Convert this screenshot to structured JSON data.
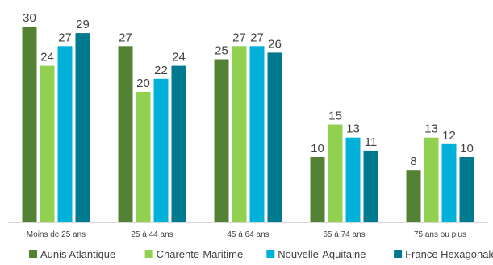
{
  "chart_data": {
    "type": "bar",
    "categories": [
      "Moins de 25 ans",
      "25 à 44 ans",
      "45 à 64 ans",
      "65 à 74 ans",
      "75 ans ou plus"
    ],
    "series": [
      {
        "name": "Aunis Atlantique",
        "color": "#548235",
        "values": [
          30,
          27,
          25,
          10,
          8
        ]
      },
      {
        "name": "Charente-Maritime",
        "color": "#92d050",
        "values": [
          24,
          20,
          27,
          15,
          13
        ]
      },
      {
        "name": "Nouvelle-Aquitaine",
        "color": "#00b0d8",
        "values": [
          27,
          22,
          27,
          13,
          12
        ]
      },
      {
        "name": "France Hexagonale",
        "color": "#007a90",
        "values": [
          29,
          24,
          26,
          11,
          10
        ]
      }
    ],
    "ylim": [
      0,
      30
    ],
    "grid": false,
    "legend_position": "bottom",
    "data_labels": true
  }
}
